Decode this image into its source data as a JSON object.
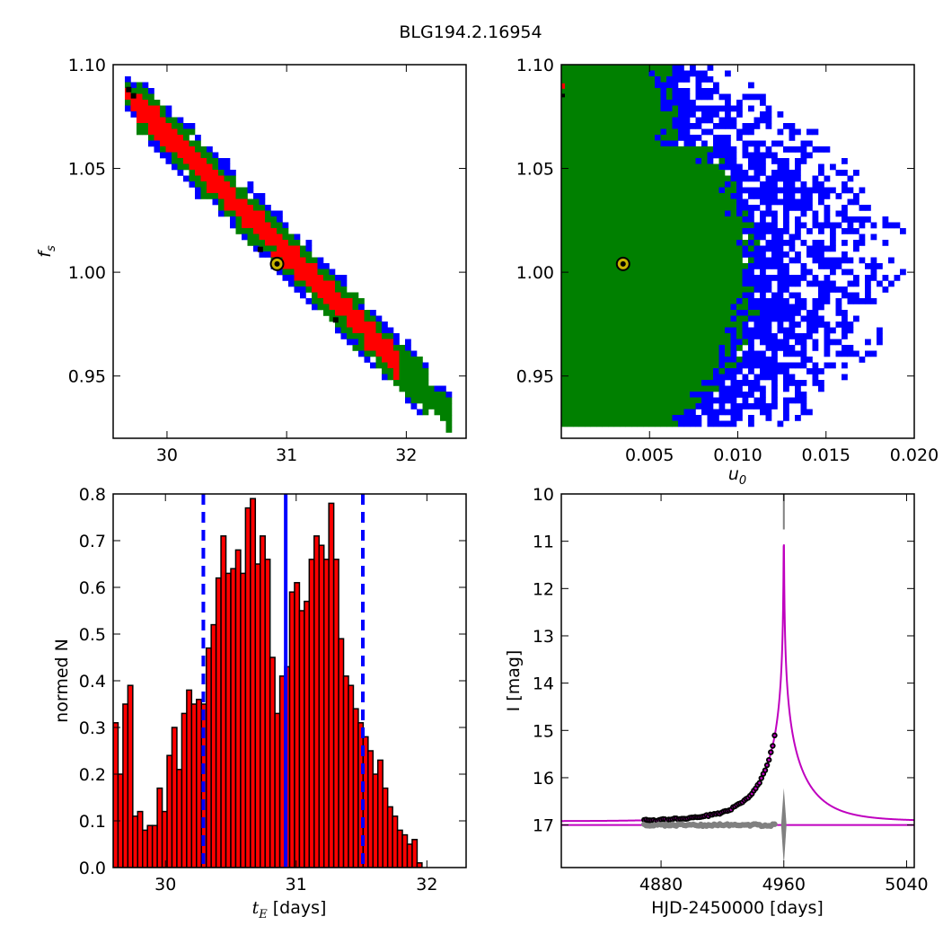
{
  "figure_title": "BLG194.2.16954",
  "colors": {
    "red": "#ff0000",
    "green": "#008000",
    "blue": "#0000ff",
    "black": "#000000",
    "marker": "#c8b400",
    "magenta": "#bf00bf",
    "gray": "#808080",
    "bar": "#ff0000",
    "vline": "#0000ff"
  },
  "chart_data": [
    {
      "id": "tE-fs",
      "type": "heatmap",
      "title": "",
      "xlabel": "",
      "ylabel": "f_s",
      "xlim": [
        29.55,
        32.5
      ],
      "ylim": [
        0.92,
        1.1
      ],
      "xticks": [
        30,
        31,
        32
      ],
      "xtick_labels": [
        "30",
        "31",
        "32"
      ],
      "yticks": [
        0.95,
        1.0,
        1.05,
        1.1
      ],
      "ytick_labels": [
        "0.95",
        "1.00",
        "1.05",
        "1.10"
      ],
      "legend": "none",
      "confidence_regions": "red = 1-sigma, green = 2-sigma, blue = 3-sigma",
      "band": {
        "x_start": 29.65,
        "x_end": 32.35,
        "fs_start": 1.087,
        "fs_end": 0.932,
        "half_width": [
          0.006,
          0.011,
          0.014
        ]
      },
      "best_fit": {
        "x": 30.92,
        "y": 1.004
      },
      "black_points": [
        {
          "x": 29.68,
          "y": 1.088
        },
        {
          "x": 29.72,
          "y": 1.085
        },
        {
          "x": 30.78,
          "y": 1.011
        },
        {
          "x": 31.41,
          "y": 0.977
        }
      ]
    },
    {
      "id": "u0-fs",
      "type": "heatmap",
      "title": "",
      "xlabel": "u_0",
      "ylabel": "",
      "xlim": [
        0.0,
        0.02
      ],
      "ylim": [
        0.92,
        1.1
      ],
      "xticks": [
        0.005,
        0.01,
        0.015,
        0.02
      ],
      "xtick_labels": [
        "0.005",
        "0.010",
        "0.015",
        "0.020"
      ],
      "yticks": [
        0.95,
        1.0,
        1.05,
        1.1
      ],
      "ytick_labels": [
        "0.95",
        "1.00",
        "1.05",
        "1.10"
      ],
      "legend": "none",
      "green_extent_u0": 0.0105,
      "blue_extent_u0": 0.0192,
      "best_fit": {
        "x": 0.0035,
        "y": 1.004
      }
    },
    {
      "id": "tE-hist",
      "type": "bar",
      "title": "",
      "xlabel": "t_E [days]",
      "ylabel": "normed N",
      "xlim": [
        29.6,
        32.3
      ],
      "ylim": [
        0.0,
        0.8
      ],
      "xticks": [
        30,
        31,
        32
      ],
      "xtick_labels": [
        "30",
        "31",
        "32"
      ],
      "yticks": [
        0.0,
        0.1,
        0.2,
        0.3,
        0.4,
        0.5,
        0.6,
        0.7,
        0.8
      ],
      "ytick_labels": [
        "0.0",
        "0.1",
        "0.2",
        "0.3",
        "0.4",
        "0.5",
        "0.6",
        "0.7",
        "0.8"
      ],
      "bin_start": 29.6,
      "bin_width": 0.0375,
      "values": [
        0.31,
        0.2,
        0.35,
        0.39,
        0.11,
        0.12,
        0.08,
        0.09,
        0.09,
        0.17,
        0.12,
        0.24,
        0.3,
        0.21,
        0.33,
        0.38,
        0.35,
        0.36,
        0.35,
        0.47,
        0.52,
        0.62,
        0.71,
        0.63,
        0.64,
        0.68,
        0.63,
        0.77,
        0.79,
        0.65,
        0.71,
        0.66,
        0.45,
        0.33,
        0.41,
        0.43,
        0.59,
        0.61,
        0.55,
        0.57,
        0.66,
        0.71,
        0.69,
        0.66,
        0.78,
        0.66,
        0.49,
        0.41,
        0.39,
        0.34,
        0.31,
        0.28,
        0.25,
        0.2,
        0.23,
        0.17,
        0.13,
        0.11,
        0.08,
        0.07,
        0.05,
        0.06,
        0.01
      ],
      "vlines": [
        {
          "x": 30.92,
          "style": "solid"
        },
        {
          "x": 30.29,
          "style": "dashed"
        },
        {
          "x": 31.51,
          "style": "dashed"
        }
      ],
      "legend": "none"
    },
    {
      "id": "lightcurve",
      "type": "line",
      "title": "",
      "xlabel": "HJD-2450000 [days]",
      "ylabel": "I [mag]",
      "xlim": [
        4815,
        5045
      ],
      "ylim": [
        17.9,
        10.0
      ],
      "y_inverted": true,
      "xticks": [
        4880,
        4960,
        5040
      ],
      "xtick_labels": [
        "4880",
        "4960",
        "5040"
      ],
      "yticks": [
        10,
        11,
        12,
        13,
        14,
        15,
        16,
        17
      ],
      "ytick_labels": [
        "10",
        "11",
        "12",
        "13",
        "14",
        "15",
        "16",
        "17"
      ],
      "model": {
        "t0": 4960.0,
        "tE": 30.92,
        "u0": 0.0035,
        "I_base": 16.92,
        "fs": 1.004
      },
      "data_range": [
        4869,
        4954
      ],
      "residual_baseline": 17.0,
      "legend": "none"
    }
  ]
}
